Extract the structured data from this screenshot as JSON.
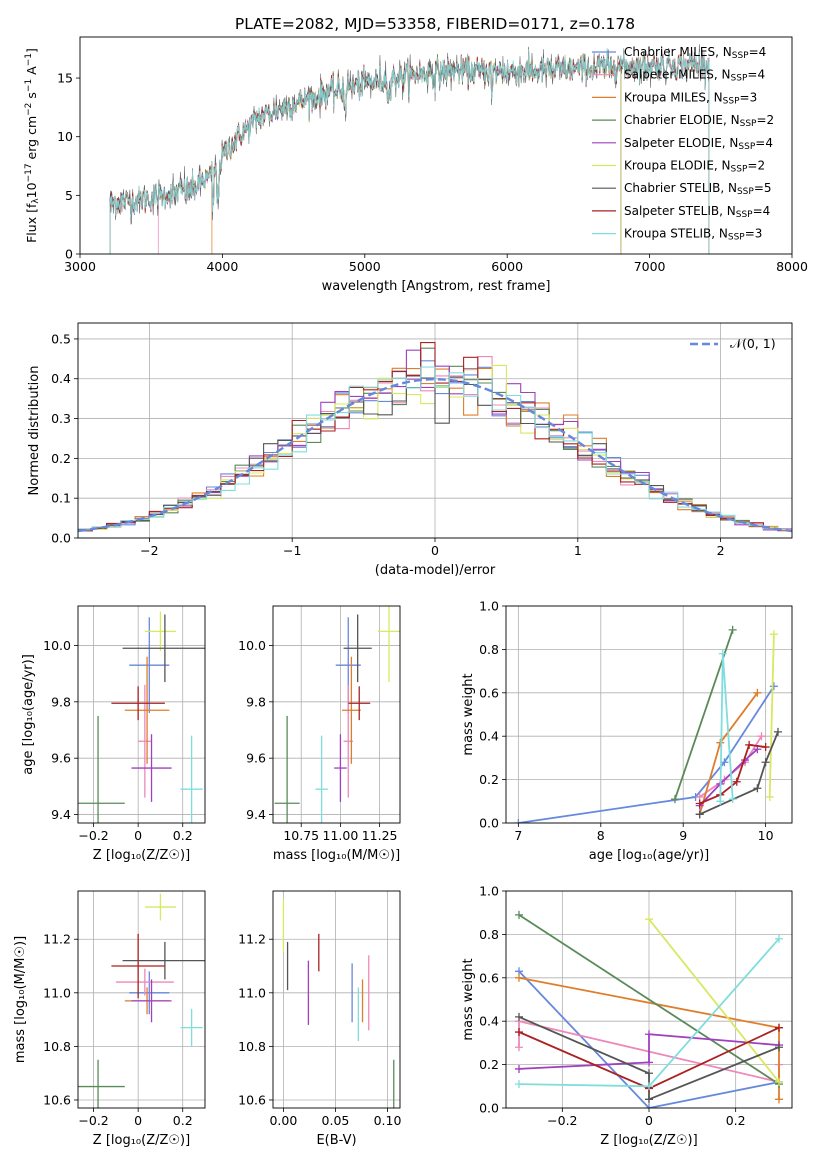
{
  "figure": {
    "title": "PLATE=2082, MJD=53358, FIBERID=0171, z=0.178"
  },
  "series": [
    {
      "name": "Chabrier MILES, N",
      "sub": "SSP",
      "tail": "=4",
      "color": "#6688dd"
    },
    {
      "name": "Salpeter MILES, N",
      "sub": "SSP",
      "tail": "=4",
      "color": "#ee88bb"
    },
    {
      "name": "Kroupa MILES, N",
      "sub": "SSP",
      "tail": "=3",
      "color": "#e07d2a"
    },
    {
      "name": "Chabrier ELODIE, N",
      "sub": "SSP",
      "tail": "=2",
      "color": "#5a8a5a"
    },
    {
      "name": "Salpeter ELODIE, N",
      "sub": "SSP",
      "tail": "=4",
      "color": "#a040c0"
    },
    {
      "name": "Kroupa ELODIE, N",
      "sub": "SSP",
      "tail": "=2",
      "color": "#d8e860"
    },
    {
      "name": "Chabrier STELIB, N",
      "sub": "SSP",
      "tail": "=5",
      "color": "#555555"
    },
    {
      "name": "Salpeter STELIB, N",
      "sub": "SSP",
      "tail": "=4",
      "color": "#aa2222"
    },
    {
      "name": "Kroupa STELIB, N",
      "sub": "SSP",
      "tail": "=3",
      "color": "#80dddd"
    }
  ],
  "chart_data": [
    {
      "id": "spectrum",
      "type": "line",
      "xlabel": "wavelength [Angstrom, rest frame]",
      "ylabel_parts": [
        "Flux [f",
        "λ",
        "10",
        "−17",
        " erg cm",
        "−2",
        " s",
        "−1",
        " A",
        "−1",
        "]"
      ],
      "xlim": [
        3000,
        8000
      ],
      "ylim": [
        0,
        18.5
      ],
      "xticks": [
        3000,
        4000,
        5000,
        6000,
        7000,
        8000
      ],
      "yticks": [
        0,
        5,
        10,
        15
      ],
      "wave_range": [
        3210,
        7420
      ],
      "continuum": {
        "wave": [
          3210,
          3400,
          3600,
          3800,
          3950,
          4050,
          4250,
          4500,
          4750,
          5000,
          5300,
          5600,
          5900,
          6200,
          6500,
          6800,
          7100,
          7420
        ],
        "flux": [
          4.4,
          4.6,
          5.0,
          5.6,
          7.0,
          9.2,
          11.6,
          12.8,
          13.8,
          14.5,
          15.2,
          15.6,
          15.6,
          15.6,
          15.8,
          16.0,
          16.1,
          16.2
        ]
      },
      "start_edges": [
        3210,
        3550,
        3925,
        3210,
        3210,
        3210,
        3210,
        3210,
        3210
      ],
      "end_edges": [
        7420,
        7420,
        7420,
        6800,
        6800,
        6800,
        7420,
        7420,
        7420
      ],
      "legend": "top-right"
    },
    {
      "id": "residuals",
      "type": "step",
      "xlabel": "(data-model)/error",
      "ylabel": "Normed distribution",
      "xlim": [
        -2.5,
        2.5
      ],
      "ylim": [
        0,
        0.54
      ],
      "xticks": [
        -2,
        -1,
        0,
        1,
        2
      ],
      "yticks": [
        0.0,
        0.1,
        0.2,
        0.3,
        0.4,
        0.5
      ],
      "bin_width": 0.1,
      "grid": true,
      "reference": {
        "name": "𝒩(0, 1)",
        "color": "#6688dd",
        "style": "dashed"
      },
      "legend": "top-right"
    },
    {
      "id": "age-vs-Z",
      "type": "errorbar",
      "xlabel": "Z [log₁₀(Z/Z☉)]",
      "ylabel": "age  [log₁₀(age/yr)]",
      "xlim": [
        -0.27,
        0.3
      ],
      "ylim": [
        9.37,
        10.14
      ],
      "xticks": [
        -0.2,
        0.0,
        0.2
      ],
      "yticks": [
        9.4,
        9.6,
        9.8,
        10.0
      ],
      "grid": true,
      "points": [
        {
          "x": 0.05,
          "xerr": 0.09,
          "y": 9.93,
          "yerr": 0.17,
          "color": "#6688dd"
        },
        {
          "x": 0.03,
          "xerr": 0.03,
          "y": 9.66,
          "yerr": 0.2,
          "color": "#ee88bb"
        },
        {
          "x": 0.04,
          "xerr": 0.1,
          "y": 9.77,
          "yerr": 0.19,
          "color": "#e07d2a"
        },
        {
          "x": -0.18,
          "xerr": 0.12,
          "y": 9.44,
          "yerr": 0.31,
          "color": "#5a8a5a"
        },
        {
          "x": 0.06,
          "xerr": 0.09,
          "y": 9.565,
          "yerr": 0.12,
          "color": "#a040c0"
        },
        {
          "x": 0.1,
          "xerr": 0.07,
          "y": 10.05,
          "yerr": 0.07,
          "color": "#d8e860"
        },
        {
          "x": 0.12,
          "xerr": 0.19,
          "y": 9.99,
          "yerr": 0.12,
          "color": "#555555"
        },
        {
          "x": 0.0,
          "xerr": 0.12,
          "y": 9.795,
          "yerr": 0.06,
          "color": "#aa2222"
        },
        {
          "x": 0.24,
          "xerr": 0.05,
          "y": 9.49,
          "yerr": 0.19,
          "color": "#80dddd"
        }
      ]
    },
    {
      "id": "age-vs-mass",
      "type": "errorbar",
      "xlabel": "mass [log₁₀(M/M☉)]",
      "ylabel": "",
      "xlim": [
        10.57,
        11.38
      ],
      "ylim": [
        9.37,
        10.14
      ],
      "xticks": [
        10.75,
        11.0,
        11.25
      ],
      "xtick_labels": [
        "10.75",
        "11.00",
        "11.25"
      ],
      "yticks": [
        9.4,
        9.6,
        9.8,
        10.0
      ],
      "grid": true,
      "points": [
        {
          "x": 11.05,
          "xerr": 0.08,
          "y": 9.93,
          "yerr": 0.17,
          "color": "#6688dd"
        },
        {
          "x": 11.05,
          "xerr": 0.03,
          "y": 9.66,
          "yerr": 0.2,
          "color": "#ee88bb"
        },
        {
          "x": 11.07,
          "xerr": 0.06,
          "y": 9.77,
          "yerr": 0.19,
          "color": "#e07d2a"
        },
        {
          "x": 10.66,
          "xerr": 0.08,
          "y": 9.44,
          "yerr": 0.31,
          "color": "#5a8a5a"
        },
        {
          "x": 11.0,
          "xerr": 0.04,
          "y": 9.565,
          "yerr": 0.12,
          "color": "#a040c0"
        },
        {
          "x": 11.31,
          "xerr": 0.07,
          "y": 10.05,
          "yerr": 0.18,
          "color": "#d8e860"
        },
        {
          "x": 11.11,
          "xerr": 0.09,
          "y": 9.99,
          "yerr": 0.12,
          "color": "#555555"
        },
        {
          "x": 11.12,
          "xerr": 0.07,
          "y": 9.795,
          "yerr": 0.06,
          "color": "#aa2222"
        },
        {
          "x": 10.88,
          "xerr": 0.04,
          "y": 9.49,
          "yerr": 0.19,
          "color": "#80dddd"
        }
      ]
    },
    {
      "id": "weight-vs-age",
      "type": "line",
      "xlabel": "age  [log₁₀(age/yr)]",
      "ylabel": "mass weight",
      "xlim": [
        6.85,
        10.32
      ],
      "ylim": [
        0,
        1
      ],
      "xticks": [
        7,
        8,
        9,
        10
      ],
      "yticks": [
        0.0,
        0.2,
        0.4,
        0.6,
        0.8,
        1.0
      ],
      "grid": true,
      "series": [
        {
          "color": "#6688dd",
          "x": [
            7.0,
            9.15,
            9.5,
            10.1
          ],
          "y": [
            0.0,
            0.12,
            0.28,
            0.63
          ]
        },
        {
          "color": "#ee88bb",
          "x": [
            9.2,
            9.5,
            9.75,
            9.95
          ],
          "y": [
            0.12,
            0.2,
            0.28,
            0.4
          ]
        },
        {
          "color": "#e07d2a",
          "x": [
            9.2,
            9.45,
            9.9
          ],
          "y": [
            0.04,
            0.37,
            0.6
          ]
        },
        {
          "color": "#5a8a5a",
          "x": [
            8.9,
            9.6
          ],
          "y": [
            0.11,
            0.89
          ]
        },
        {
          "color": "#a040c0",
          "x": [
            9.2,
            9.45,
            9.75,
            9.9
          ],
          "y": [
            0.08,
            0.18,
            0.29,
            0.34
          ]
        },
        {
          "color": "#d8e860",
          "x": [
            10.05,
            10.1
          ],
          "y": [
            0.12,
            0.87
          ]
        },
        {
          "color": "#555555",
          "x": [
            9.2,
            9.9,
            10.0,
            10.15
          ],
          "y": [
            0.04,
            0.16,
            0.28,
            0.42
          ]
        },
        {
          "color": "#aa2222",
          "x": [
            9.2,
            9.45,
            9.65,
            9.8,
            10.0
          ],
          "y": [
            0.09,
            0.13,
            0.19,
            0.36,
            0.35
          ]
        },
        {
          "color": "#80dddd",
          "x": [
            9.45,
            9.48,
            9.6
          ],
          "y": [
            0.1,
            0.78,
            0.11
          ]
        }
      ]
    },
    {
      "id": "mass-vs-Z",
      "type": "errorbar",
      "xlabel": "Z [log₁₀(Z/Z☉)]",
      "ylabel": "mass [log₁₀(M/M☉)]",
      "xlim": [
        -0.27,
        0.3
      ],
      "ylim": [
        10.57,
        11.38
      ],
      "xticks": [
        -0.2,
        0.0,
        0.2
      ],
      "yticks": [
        10.6,
        10.8,
        11.0,
        11.2
      ],
      "grid": true,
      "points": [
        {
          "x": 0.05,
          "xerr": 0.09,
          "y": 11.0,
          "yerr": 0.08,
          "color": "#6688dd"
        },
        {
          "x": 0.03,
          "xerr": 0.13,
          "y": 11.04,
          "yerr": 0.05,
          "color": "#ee88bb"
        },
        {
          "x": 0.04,
          "xerr": 0.1,
          "y": 10.97,
          "yerr": 0.05,
          "color": "#e07d2a"
        },
        {
          "x": -0.18,
          "xerr": 0.12,
          "y": 10.65,
          "yerr": 0.1,
          "color": "#5a8a5a"
        },
        {
          "x": 0.06,
          "xerr": 0.09,
          "y": 10.97,
          "yerr": 0.08,
          "color": "#a040c0"
        },
        {
          "x": 0.1,
          "xerr": 0.07,
          "y": 11.32,
          "yerr": 0.05,
          "color": "#d8e860"
        },
        {
          "x": 0.12,
          "xerr": 0.19,
          "y": 11.12,
          "yerr": 0.07,
          "color": "#555555"
        },
        {
          "x": 0.0,
          "xerr": 0.12,
          "y": 11.1,
          "yerr": 0.12,
          "color": "#aa2222"
        },
        {
          "x": 0.24,
          "xerr": 0.05,
          "y": 10.87,
          "yerr": 0.07,
          "color": "#80dddd"
        }
      ]
    },
    {
      "id": "mass-vs-EBV",
      "type": "errorbar",
      "xlabel": "E(B-V)",
      "ylabel": "",
      "xlim": [
        -0.01,
        0.112
      ],
      "ylim": [
        10.57,
        11.38
      ],
      "xticks": [
        0.0,
        0.05,
        0.1
      ],
      "xtick_labels": [
        "0.00",
        "0.05",
        "0.10"
      ],
      "yticks": [
        10.6,
        10.8,
        11.0,
        11.2
      ],
      "grid": true,
      "points": [
        {
          "x": 0.066,
          "xerr": 0,
          "y": 11.0,
          "yerr": 0.11,
          "color": "#6688dd"
        },
        {
          "x": 0.082,
          "xerr": 0,
          "y": 11.0,
          "yerr": 0.14,
          "color": "#ee88bb"
        },
        {
          "x": 0.076,
          "xerr": 0,
          "y": 10.97,
          "yerr": 0.08,
          "color": "#e07d2a"
        },
        {
          "x": 0.106,
          "xerr": 0,
          "y": 10.65,
          "yerr": 0.1,
          "color": "#5a8a5a"
        },
        {
          "x": 0.024,
          "xerr": 0,
          "y": 11.0,
          "yerr": 0.12,
          "color": "#a040c0"
        },
        {
          "x": 0.0,
          "xerr": 0,
          "y": 11.25,
          "yerr": 0.1,
          "color": "#d8e860"
        },
        {
          "x": 0.004,
          "xerr": 0,
          "y": 11.1,
          "yerr": 0.09,
          "color": "#555555"
        },
        {
          "x": 0.034,
          "xerr": 0,
          "y": 11.15,
          "yerr": 0.07,
          "color": "#aa2222"
        },
        {
          "x": 0.072,
          "xerr": 0,
          "y": 10.92,
          "yerr": 0.1,
          "color": "#80dddd"
        }
      ]
    },
    {
      "id": "weight-vs-Z",
      "type": "line",
      "xlabel": "Z [log₁₀(Z/Z☉)]",
      "ylabel": "mass weight",
      "xlim": [
        -0.33,
        0.33
      ],
      "ylim": [
        0,
        1
      ],
      "xticks": [
        -0.2,
        0.0,
        0.2
      ],
      "yticks": [
        0.0,
        0.2,
        0.4,
        0.6,
        0.8,
        1.0
      ],
      "grid": true,
      "series": [
        {
          "color": "#6688dd",
          "x": [
            -0.3,
            0.0,
            0.3
          ],
          "y": [
            0.63,
            0.0,
            0.12
          ]
        },
        {
          "color": "#ee88bb",
          "x": [
            -0.3,
            -0.3,
            0.3,
            0.3
          ],
          "y": [
            0.28,
            0.4,
            0.12,
            0.2
          ]
        },
        {
          "color": "#e07d2a",
          "x": [
            -0.3,
            0.3,
            0.3
          ],
          "y": [
            0.6,
            0.37,
            0.04
          ]
        },
        {
          "color": "#5a8a5a",
          "x": [
            -0.3,
            0.3
          ],
          "y": [
            0.89,
            0.11
          ]
        },
        {
          "color": "#a040c0",
          "x": [
            -0.3,
            0.0,
            0.0,
            0.3
          ],
          "y": [
            0.18,
            0.21,
            0.34,
            0.29
          ]
        },
        {
          "color": "#d8e860",
          "x": [
            0.0,
            0.3
          ],
          "y": [
            0.87,
            0.12
          ]
        },
        {
          "color": "#555555",
          "x": [
            -0.3,
            0.0,
            0.0,
            0.3
          ],
          "y": [
            0.42,
            0.16,
            0.04,
            0.28
          ]
        },
        {
          "color": "#aa2222",
          "x": [
            -0.3,
            0.0,
            0.3
          ],
          "y": [
            0.35,
            0.09,
            0.37
          ]
        },
        {
          "color": "#80dddd",
          "x": [
            -0.3,
            0.0,
            0.3
          ],
          "y": [
            0.11,
            0.1,
            0.78
          ]
        }
      ]
    }
  ]
}
